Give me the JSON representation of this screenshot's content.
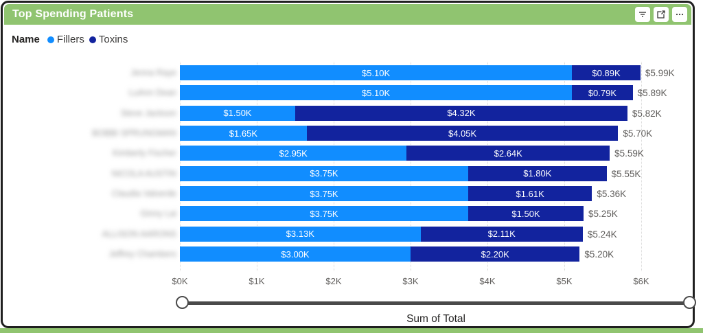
{
  "header": {
    "title": "Top Spending Patients",
    "buttons": [
      {
        "name": "filter-icon"
      },
      {
        "name": "focus-mode-icon"
      },
      {
        "name": "more-options-icon"
      }
    ]
  },
  "legend": {
    "label": "Name",
    "items": [
      {
        "label": "Fillers",
        "color": "#118DFF"
      },
      {
        "label": "Toxins",
        "color": "#12239E"
      }
    ]
  },
  "chart_data": {
    "type": "bar",
    "orientation": "horizontal",
    "stacked": true,
    "title": "Top Spending Patients",
    "categories_blurred": true,
    "categories": [
      "Jenna Raye",
      "LuAnn Dean",
      "Steve Jackson",
      "BOBBI SPRUNGMAN",
      "Kimberly Fischer",
      "NICOLA AUSTIN",
      "Claudia Valverde",
      "Ginny Lai",
      "ALLISON AARONS",
      "Jeffrey Chambers"
    ],
    "series": [
      {
        "name": "Fillers",
        "color": "#118DFF",
        "values": [
          5.1,
          5.1,
          1.5,
          1.65,
          2.95,
          3.75,
          3.75,
          3.75,
          3.13,
          3.0
        ],
        "labels": [
          "$5.10K",
          "$5.10K",
          "$1.50K",
          "$1.65K",
          "$2.95K",
          "$3.75K",
          "$3.75K",
          "$3.75K",
          "$3.13K",
          "$3.00K"
        ]
      },
      {
        "name": "Toxins",
        "color": "#12239E",
        "values": [
          0.89,
          0.79,
          4.32,
          4.05,
          2.64,
          1.8,
          1.61,
          1.5,
          2.11,
          2.2
        ],
        "labels": [
          "$0.89K",
          "$0.79K",
          "$4.32K",
          "$4.05K",
          "$2.64K",
          "$1.80K",
          "$1.61K",
          "$1.50K",
          "$2.11K",
          "$2.20K"
        ]
      }
    ],
    "totals": [
      5.99,
      5.89,
      5.82,
      5.7,
      5.59,
      5.55,
      5.36,
      5.25,
      5.24,
      5.2
    ],
    "total_labels": [
      "$5.99K",
      "$5.89K",
      "$5.82K",
      "$5.70K",
      "$5.59K",
      "$5.55K",
      "$5.36K",
      "$5.25K",
      "$5.24K",
      "$5.20K"
    ],
    "x_ticks": [
      "$0K",
      "$1K",
      "$2K",
      "$3K",
      "$4K",
      "$5K",
      "$6K"
    ],
    "xlim": [
      0,
      6
    ],
    "xlabel": "Sum of Total",
    "legend_position": "top",
    "grid": "vertical-dotted"
  },
  "colors": {
    "header_green": "#90C470",
    "fillers_blue": "#118DFF",
    "toxins_navy": "#12239E",
    "axis_text": "#605E5C"
  }
}
